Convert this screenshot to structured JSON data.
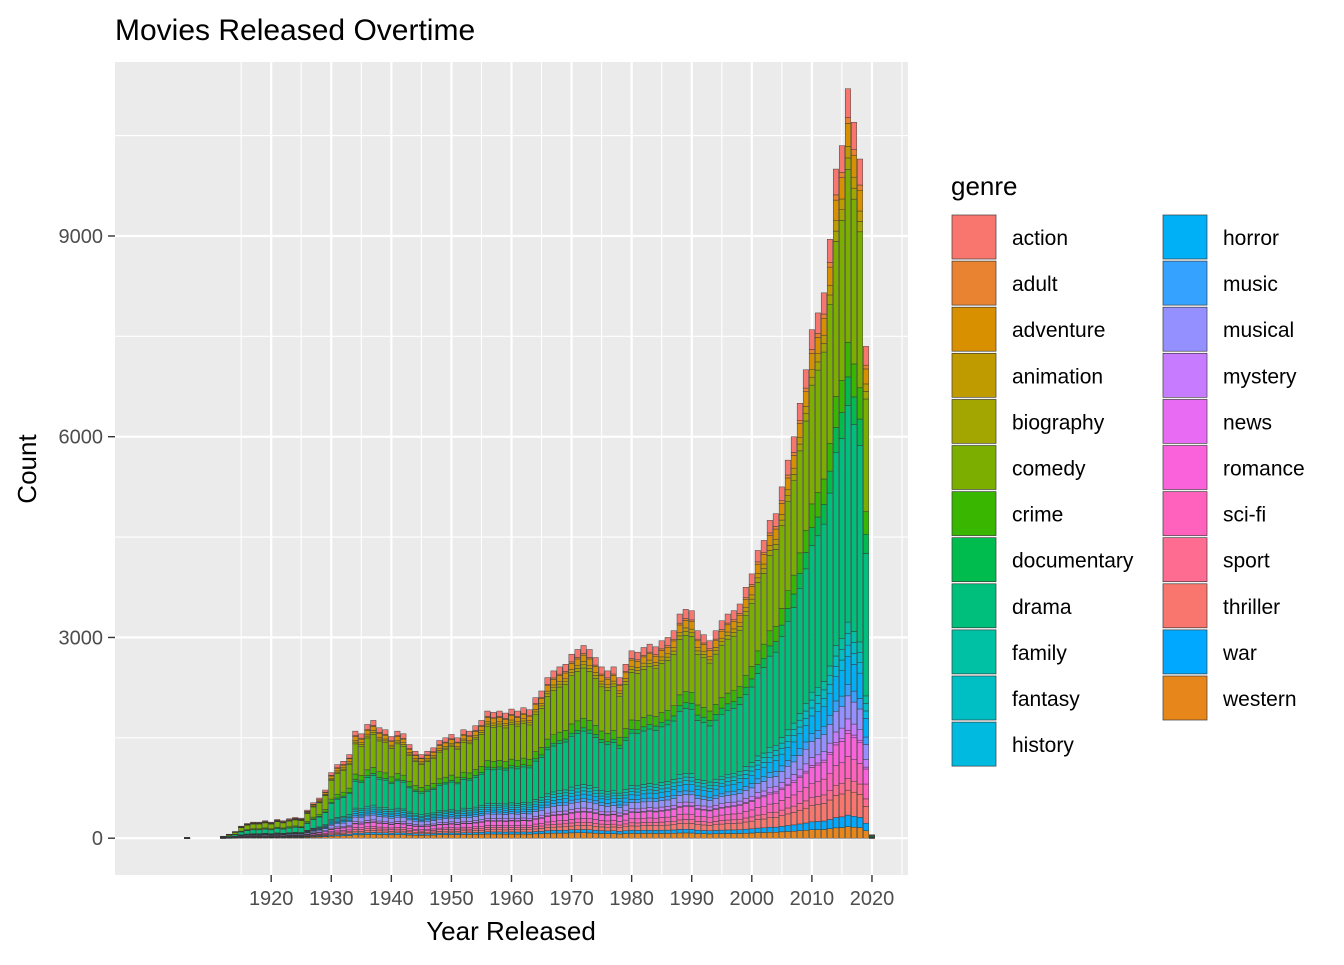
{
  "chart_data": {
    "type": "bar",
    "stacked": true,
    "title": "Movies Released Overtime",
    "xlabel": "Year Released",
    "ylabel": "Count",
    "xlim": [
      1894,
      2026
    ],
    "ylim": [
      -550,
      11600
    ],
    "x_ticks": [
      1920,
      1930,
      1940,
      1950,
      1960,
      1970,
      1980,
      1990,
      2000,
      2010,
      2020
    ],
    "y_ticks": [
      0,
      3000,
      6000,
      9000
    ],
    "grid": true,
    "legend": {
      "title": "genre",
      "placement": "right",
      "columns": 2
    },
    "genres": [
      "action",
      "adult",
      "adventure",
      "animation",
      "biography",
      "comedy",
      "crime",
      "documentary",
      "drama",
      "family",
      "fantasy",
      "history",
      "horror",
      "music",
      "musical",
      "mystery",
      "news",
      "romance",
      "sci-fi",
      "sport",
      "thriller",
      "war",
      "western"
    ],
    "colors": [
      "#F8766D",
      "#EA8331",
      "#D89000",
      "#C09B00",
      "#A3A500",
      "#7CAE00",
      "#39B600",
      "#00BB4E",
      "#00BF7D",
      "#00C1A3",
      "#00BFC4",
      "#00BAE0",
      "#00B0F6",
      "#35A2FF",
      "#9590FF",
      "#C77CFF",
      "#E76BF3",
      "#FA62DB",
      "#FF62BC",
      "#FF6C91",
      "#F8766D",
      "#00A9FF",
      "#E7861B"
    ],
    "years": [
      1906,
      1912,
      1913,
      1914,
      1915,
      1916,
      1917,
      1918,
      1919,
      1920,
      1921,
      1922,
      1923,
      1924,
      1925,
      1926,
      1927,
      1928,
      1929,
      1930,
      1931,
      1932,
      1933,
      1934,
      1935,
      1936,
      1937,
      1938,
      1939,
      1940,
      1941,
      1942,
      1943,
      1944,
      1945,
      1946,
      1947,
      1948,
      1949,
      1950,
      1951,
      1952,
      1953,
      1954,
      1955,
      1956,
      1957,
      1958,
      1959,
      1960,
      1961,
      1962,
      1963,
      1964,
      1965,
      1966,
      1967,
      1968,
      1969,
      1970,
      1971,
      1972,
      1973,
      1974,
      1975,
      1976,
      1977,
      1978,
      1979,
      1980,
      1981,
      1982,
      1983,
      1984,
      1985,
      1986,
      1987,
      1988,
      1989,
      1990,
      1991,
      1992,
      1993,
      1994,
      1995,
      1996,
      1997,
      1998,
      1999,
      2000,
      2001,
      2002,
      2003,
      2004,
      2005,
      2006,
      2007,
      2008,
      2009,
      2010,
      2011,
      2012,
      2013,
      2014,
      2015,
      2016,
      2017,
      2018,
      2019,
      2020
    ],
    "totals": [
      10,
      30,
      60,
      100,
      180,
      220,
      240,
      240,
      260,
      240,
      280,
      260,
      290,
      310,
      300,
      420,
      530,
      600,
      720,
      980,
      1100,
      1150,
      1250,
      1600,
      1560,
      1700,
      1760,
      1650,
      1620,
      1520,
      1600,
      1560,
      1400,
      1300,
      1250,
      1300,
      1350,
      1460,
      1500,
      1550,
      1500,
      1620,
      1600,
      1680,
      1760,
      1900,
      1880,
      1900,
      1870,
      1930,
      1900,
      1950,
      1920,
      2100,
      2200,
      2400,
      2500,
      2560,
      2600,
      2750,
      2820,
      2880,
      2820,
      2700,
      2560,
      2500,
      2560,
      2400,
      2600,
      2800,
      2780,
      2850,
      2900,
      2860,
      2950,
      3000,
      3100,
      3350,
      3420,
      3400,
      3100,
      3040,
      2950,
      3100,
      3250,
      3350,
      3400,
      3500,
      3750,
      3950,
      4300,
      4450,
      4750,
      4850,
      5250,
      5650,
      6000,
      6500,
      7000,
      7600,
      7850,
      8150,
      8950,
      10000,
      10350,
      11200,
      10700,
      10150,
      7350,
      50
    ]
  }
}
